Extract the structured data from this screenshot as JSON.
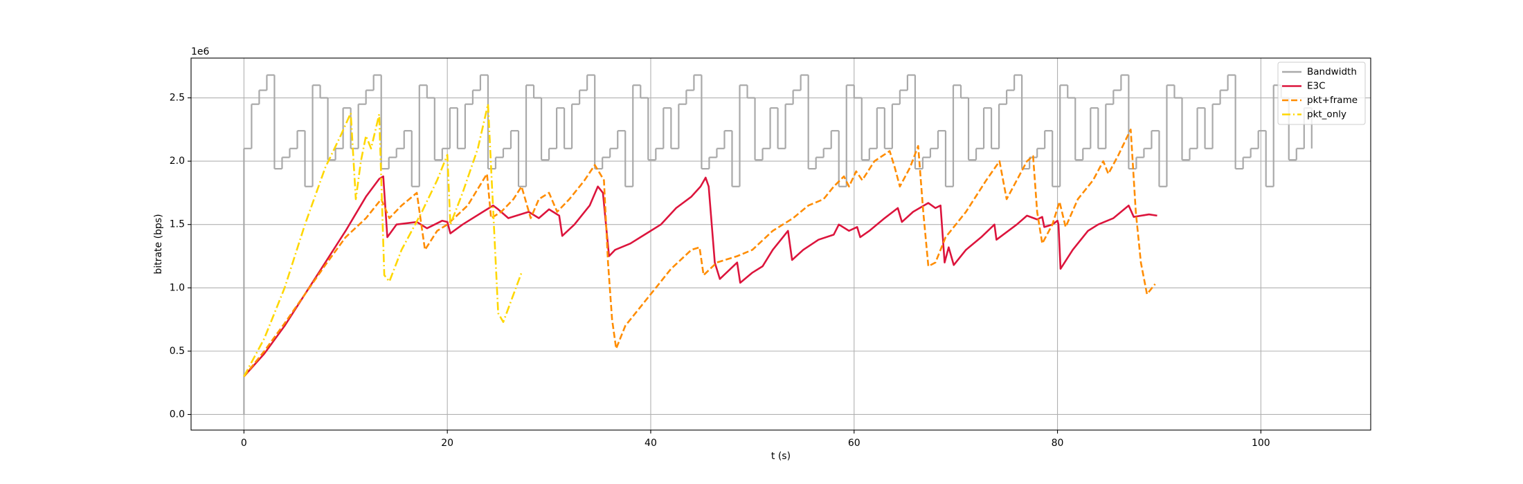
{
  "chart_data": {
    "type": "line",
    "xlabel": "t (s)",
    "ylabel": "bitrate (bps)",
    "y_offset_label": "1e6",
    "xlim": [
      -5.2,
      110.8
    ],
    "ylim": [
      -0.123,
      2.814
    ],
    "xticks": [
      0,
      20,
      40,
      60,
      80,
      100
    ],
    "yticks": [
      {
        "value": 0,
        "label": "0.0"
      },
      0.5,
      {
        "value": 1,
        "label": "1.0"
      },
      1.5,
      {
        "value": 2,
        "label": "2.0"
      },
      2.5
    ],
    "grid": true,
    "legend_loc": "upper right",
    "series": [
      {
        "name": "Bandwidth",
        "color": "#a9a9a9",
        "linestyle": "solid",
        "drawstyle": "steps-post",
        "x": [
          0,
          0,
          0.75,
          1.5,
          2.25,
          3,
          3.75,
          4.5,
          5.25,
          6,
          6.75,
          7.5,
          8.25,
          9,
          9.75,
          10.5,
          11.25,
          12,
          12.75,
          13.5,
          14.25,
          15,
          15.75,
          16.5,
          17.25,
          18,
          18.75,
          19.5,
          20.25,
          21,
          21.75,
          22.5,
          23.25,
          24,
          24.75,
          25.5,
          26.25,
          27,
          27.75,
          28.5,
          29.25,
          30,
          30.75,
          31.5,
          32.25,
          33,
          33.75,
          34.5,
          35.25,
          36,
          36.75,
          37.5,
          38.25,
          39,
          39.75,
          40.5,
          41.25,
          42,
          42.75,
          43.5,
          44.25,
          45,
          45.75,
          46.5,
          47.25,
          48,
          48.75,
          49.5,
          50.25,
          51,
          51.75,
          52.5,
          53.25,
          54,
          54.75,
          55.5,
          56.25,
          57,
          57.75,
          58.5,
          59.25,
          60,
          60.75,
          61.5,
          62.25,
          63,
          63.75,
          64.5,
          65.25,
          66,
          66.75,
          67.5,
          68.25,
          69,
          69.75,
          70.5,
          71.25,
          72,
          72.75,
          73.5,
          74.25,
          75,
          75.75,
          76.5,
          77.25,
          78,
          78.75,
          79.5,
          80.25,
          81,
          81.75,
          82.5,
          83.25,
          84,
          84.75,
          85.5,
          86.25,
          87,
          87.75,
          88.5,
          89.25,
          90,
          90.75,
          91.5,
          92.25,
          93,
          93.75,
          94.5,
          95.25,
          96,
          96.75,
          97.5,
          98.25,
          99,
          99.75,
          100.5,
          101.25,
          102,
          102.75,
          103.5,
          104.25,
          105
        ],
        "values": [
          0,
          2.1,
          2.45,
          2.56,
          2.68,
          1.94,
          2.03,
          2.1,
          2.24,
          1.8,
          2.6,
          2.5,
          2.01,
          2.1,
          2.42,
          2.1,
          2.45,
          2.56,
          2.68,
          1.94,
          2.03,
          2.1,
          2.24,
          1.8,
          2.6,
          2.5,
          2.01,
          2.1,
          2.42,
          2.1,
          2.45,
          2.56,
          2.68,
          1.94,
          2.03,
          2.1,
          2.24,
          1.8,
          2.6,
          2.5,
          2.01,
          2.1,
          2.42,
          2.1,
          2.45,
          2.56,
          2.68,
          1.94,
          2.03,
          2.1,
          2.24,
          1.8,
          2.6,
          2.5,
          2.01,
          2.1,
          2.42,
          2.1,
          2.45,
          2.56,
          2.68,
          1.94,
          2.03,
          2.1,
          2.24,
          1.8,
          2.6,
          2.5,
          2.01,
          2.1,
          2.42,
          2.1,
          2.45,
          2.56,
          2.68,
          1.94,
          2.03,
          2.1,
          2.24,
          1.8,
          2.6,
          2.5,
          2.01,
          2.1,
          2.42,
          2.1,
          2.45,
          2.56,
          2.68,
          1.94,
          2.03,
          2.1,
          2.24,
          1.8,
          2.6,
          2.5,
          2.01,
          2.1,
          2.42,
          2.1,
          2.45,
          2.56,
          2.68,
          1.94,
          2.03,
          2.1,
          2.24,
          1.8,
          2.6,
          2.5,
          2.01,
          2.1,
          2.42,
          2.1,
          2.45,
          2.56,
          2.68,
          1.94,
          2.03,
          2.1,
          2.24,
          1.8,
          2.6,
          2.5,
          2.01,
          2.1,
          2.42,
          2.1,
          2.45,
          2.56,
          2.68,
          1.94,
          2.03,
          2.1,
          2.24,
          1.8,
          2.6,
          2.5,
          2.01,
          2.1,
          2.42,
          2.1
        ]
      },
      {
        "name": "E3C",
        "color": "#dc143c",
        "linestyle": "solid",
        "x": [
          0,
          2,
          4,
          6,
          8,
          10,
          12,
          13.3,
          13.7,
          14.1,
          15,
          17,
          18,
          19.5,
          20,
          20.3,
          21.5,
          23.5,
          24.5,
          25,
          26,
          28,
          29,
          30,
          31,
          31.3,
          32.5,
          34,
          34.8,
          35.3,
          35.9,
          36.5,
          38,
          39,
          40,
          41,
          42.5,
          44,
          44.9,
          45.4,
          45.7,
          46.3,
          46.8,
          48.5,
          48.8,
          50,
          51,
          52,
          53,
          53.5,
          53.9,
          55,
          56.5,
          58,
          58.5,
          59.5,
          60.3,
          60.6,
          61.5,
          63,
          64.3,
          64.7,
          65.8,
          67.3,
          68,
          68.5,
          68.9,
          69.3,
          69.8,
          71,
          72.5,
          73.8,
          74,
          76,
          77,
          78,
          78.5,
          78.7,
          79.5,
          80,
          80.1,
          80.3,
          81.5,
          83,
          84,
          85.5,
          87,
          87.5,
          89,
          89.8
        ],
        "values": [
          0.3,
          0.48,
          0.7,
          0.95,
          1.2,
          1.45,
          1.72,
          1.86,
          1.88,
          1.4,
          1.5,
          1.52,
          1.47,
          1.53,
          1.52,
          1.43,
          1.5,
          1.6,
          1.65,
          1.62,
          1.55,
          1.6,
          1.55,
          1.62,
          1.57,
          1.41,
          1.5,
          1.65,
          1.8,
          1.75,
          1.25,
          1.3,
          1.35,
          1.4,
          1.45,
          1.5,
          1.63,
          1.72,
          1.8,
          1.87,
          1.8,
          1.2,
          1.07,
          1.2,
          1.04,
          1.12,
          1.17,
          1.3,
          1.4,
          1.45,
          1.22,
          1.3,
          1.38,
          1.42,
          1.5,
          1.45,
          1.48,
          1.4,
          1.45,
          1.55,
          1.63,
          1.52,
          1.6,
          1.67,
          1.63,
          1.65,
          1.2,
          1.32,
          1.18,
          1.3,
          1.4,
          1.5,
          1.38,
          1.5,
          1.57,
          1.54,
          1.56,
          1.48,
          1.5,
          1.53,
          1.5,
          1.15,
          1.3,
          1.45,
          1.5,
          1.55,
          1.65,
          1.56,
          1.58,
          1.57
        ]
      },
      {
        "name": "pkt+frame",
        "color": "#ff8c00",
        "linestyle": "dashed",
        "x": [
          0,
          2,
          4,
          6,
          8,
          10,
          12,
          13.5,
          14.3,
          15.5,
          17,
          17.8,
          19,
          20,
          22,
          23.9,
          24.3,
          25.3,
          26.5,
          27.3,
          28.2,
          29,
          30,
          30.8,
          32,
          33.5,
          34.5,
          35.4,
          35.8,
          36.2,
          36.6,
          37.5,
          39.5,
          42,
          44,
          44.8,
          45.2,
          46.5,
          48.5,
          50,
          52,
          54,
          55.5,
          57,
          58,
          59,
          59.5,
          60.2,
          60.8,
          62,
          63.5,
          64,
          64.5,
          65.5,
          66.3,
          66.8,
          67.3,
          68,
          69,
          71,
          73,
          74.3,
          75,
          76,
          77,
          77.6,
          78,
          78.5,
          79.5,
          80.2,
          80.8,
          82,
          83.5,
          84.5,
          85,
          86,
          87.2,
          87.7,
          88.2,
          88.8,
          89.6
        ],
        "values": [
          0.3,
          0.5,
          0.72,
          0.95,
          1.18,
          1.4,
          1.55,
          1.7,
          1.55,
          1.65,
          1.75,
          1.3,
          1.45,
          1.5,
          1.65,
          1.9,
          1.55,
          1.6,
          1.7,
          1.8,
          1.55,
          1.7,
          1.75,
          1.6,
          1.7,
          1.85,
          1.97,
          1.85,
          1.2,
          0.75,
          0.52,
          0.7,
          0.9,
          1.15,
          1.3,
          1.32,
          1.1,
          1.2,
          1.25,
          1.3,
          1.45,
          1.55,
          1.65,
          1.7,
          1.8,
          1.88,
          1.8,
          1.92,
          1.85,
          2.0,
          2.08,
          1.95,
          1.8,
          1.95,
          2.12,
          1.6,
          1.17,
          1.2,
          1.4,
          1.6,
          1.85,
          2.0,
          1.7,
          1.85,
          2.0,
          2.04,
          1.6,
          1.35,
          1.5,
          1.68,
          1.48,
          1.7,
          1.85,
          2.0,
          1.9,
          2.05,
          2.25,
          1.6,
          1.2,
          0.95,
          1.03
        ]
      },
      {
        "name": "pkt_only",
        "color": "#ffd700",
        "linestyle": "dashdot",
        "x": [
          0,
          2,
          4,
          6,
          8,
          9.5,
          10.5,
          11,
          11.5,
          12,
          12.5,
          13.3,
          13.8,
          14.3,
          15.5,
          17.5,
          19,
          20,
          20.3,
          21.5,
          23,
          24,
          25,
          25.5,
          27.3
        ],
        "values": [
          0.3,
          0.6,
          1.0,
          1.5,
          1.95,
          2.2,
          2.38,
          1.7,
          2.0,
          2.2,
          2.1,
          2.37,
          1.1,
          1.05,
          1.3,
          1.6,
          1.85,
          2.05,
          1.5,
          1.75,
          2.1,
          2.45,
          0.8,
          0.73,
          1.12
        ]
      }
    ]
  }
}
